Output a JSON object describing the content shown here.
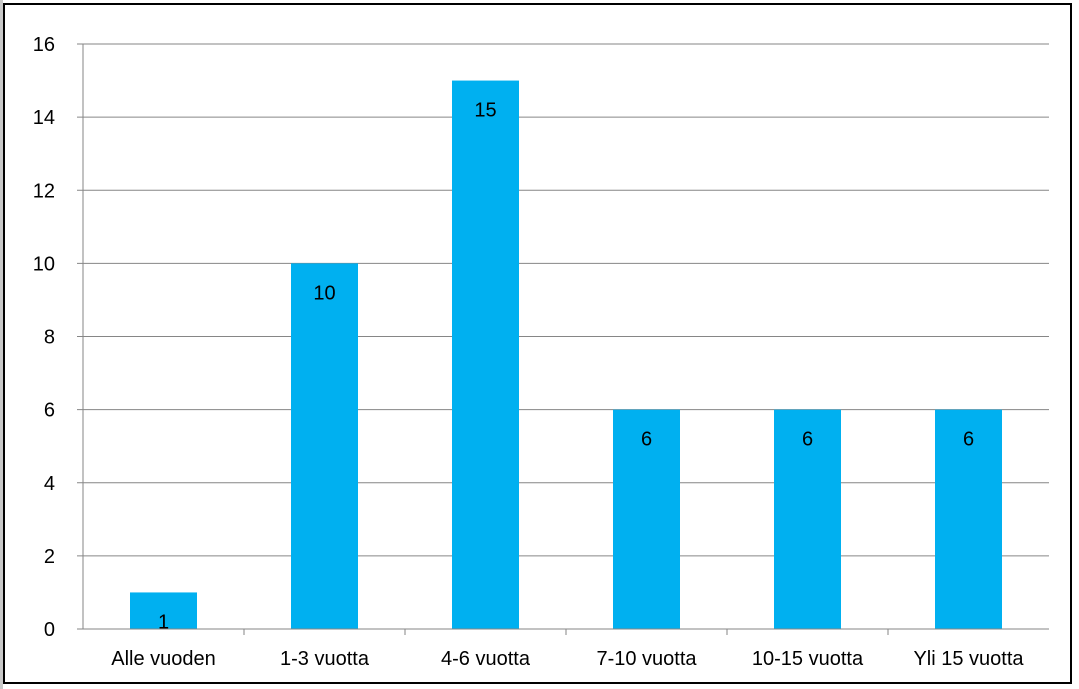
{
  "chart_data": {
    "type": "bar",
    "title": "",
    "xlabel": "",
    "ylabel": "",
    "categories": [
      "Alle vuoden",
      "1-3 vuotta",
      "4-6 vuotta",
      "7-10 vuotta",
      "10-15 vuotta",
      "Yli 15 vuotta"
    ],
    "values": [
      1,
      10,
      15,
      6,
      6,
      6
    ],
    "data_labels": [
      "1",
      "10",
      "15",
      "6",
      "6",
      "6"
    ],
    "ylim": [
      0,
      16
    ],
    "yticks": [
      0,
      2,
      4,
      6,
      8,
      10,
      12,
      14,
      16
    ],
    "ytick_labels": [
      "0",
      "2",
      "4",
      "6",
      "8",
      "10",
      "12",
      "14",
      "16"
    ],
    "grid": true,
    "legend": "none",
    "bar_color": "#00b0f0",
    "grid_color": "#868686"
  }
}
